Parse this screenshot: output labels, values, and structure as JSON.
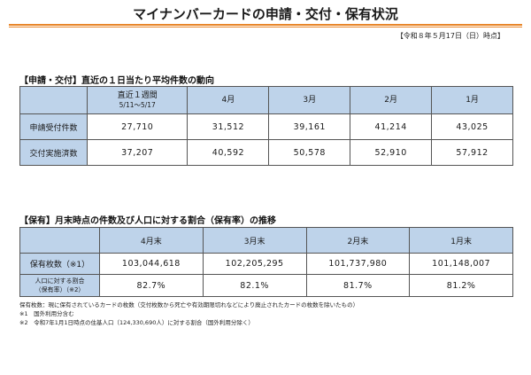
{
  "header": {
    "title": "マイナンバーカードの申請・交付・保有状況",
    "as_of": "【令和８年５月17日（日）時点】"
  },
  "section1": {
    "title": "【申請・交付】直近の１日当たり平均件数の動向",
    "columns": [
      {
        "label": "直近１週間",
        "sub": "5/11～5/17"
      },
      {
        "label": "4月",
        "sub": ""
      },
      {
        "label": "3月",
        "sub": ""
      },
      {
        "label": "2月",
        "sub": ""
      },
      {
        "label": "1月",
        "sub": ""
      }
    ],
    "rows": [
      {
        "label": "申請受付件数",
        "values": [
          "27,710",
          "31,512",
          "39,161",
          "41,214",
          "43,025"
        ]
      },
      {
        "label": "交付実施済数",
        "values": [
          "37,207",
          "40,592",
          "50,578",
          "52,910",
          "57,912"
        ]
      }
    ]
  },
  "section2": {
    "title": "【保有】月末時点の件数及び人口に対する割合（保有率）の推移",
    "columns": [
      "4月末",
      "3月末",
      "2月末",
      "1月末"
    ],
    "rows": [
      {
        "label": "保有枚数（※1）",
        "label_sub": "",
        "values": [
          "103,044,618",
          "102,205,295",
          "101,737,980",
          "101,148,007"
        ]
      },
      {
        "label": "人口に対する割合",
        "label_sub": "（保有率）（※2）",
        "values": [
          "82.7%",
          "82.1%",
          "81.7%",
          "81.2%"
        ]
      }
    ]
  },
  "notes": [
    "保有枚数：現に保有されているカードの枚数（交付枚数から死亡や有効期限切れなどにより廃止されたカードの枚数を除いたもの）",
    "※1　国外利用分含む",
    "※2　令和7年1月1日時点の住基人口（124,330,690人）に対する割合（国外利用分除く）"
  ],
  "colors": {
    "accent_rule": "#e8862a",
    "header_fill": "#bed3ea"
  }
}
